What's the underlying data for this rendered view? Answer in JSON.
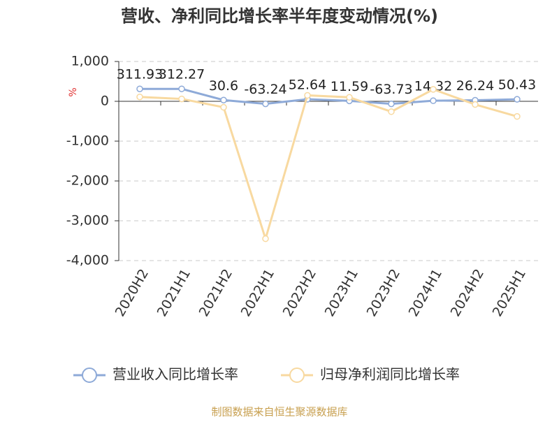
{
  "chart_data": {
    "type": "line",
    "title": "营收、净利同比增长率半年度变动情况(%)",
    "y_unit": "%",
    "categories": [
      "2020H2",
      "2021H1",
      "2021H2",
      "2022H1",
      "2022H2",
      "2023H1",
      "2023H2",
      "2024H1",
      "2024H2",
      "2025H1"
    ],
    "series": [
      {
        "name": "营业收入同比增长率",
        "color": "#8eaad8",
        "values": [
          311.93,
          312.27,
          30.6,
          -63.24,
          52.64,
          11.59,
          -63.73,
          14.32,
          26.24,
          50.43
        ],
        "show_labels": true
      },
      {
        "name": "归母净利润同比增长率",
        "color": "#f8d9a0",
        "values": [
          110,
          60,
          -150,
          -3450,
          150,
          100,
          -260,
          300,
          -80,
          -380
        ],
        "show_labels": false
      }
    ],
    "ylim": [
      -4000,
      1000
    ],
    "yticks": [
      {
        "value": 1000,
        "label": "1,000"
      },
      0,
      {
        "value": -1000,
        "label": "-1,000"
      },
      {
        "value": -2000,
        "label": "-2,000"
      },
      {
        "value": -3000,
        "label": "-3,000"
      },
      {
        "value": -4000,
        "label": "-4,000"
      }
    ],
    "grid": true,
    "legend": "bottom",
    "source": "制图数据来自恒生聚源数据库"
  }
}
